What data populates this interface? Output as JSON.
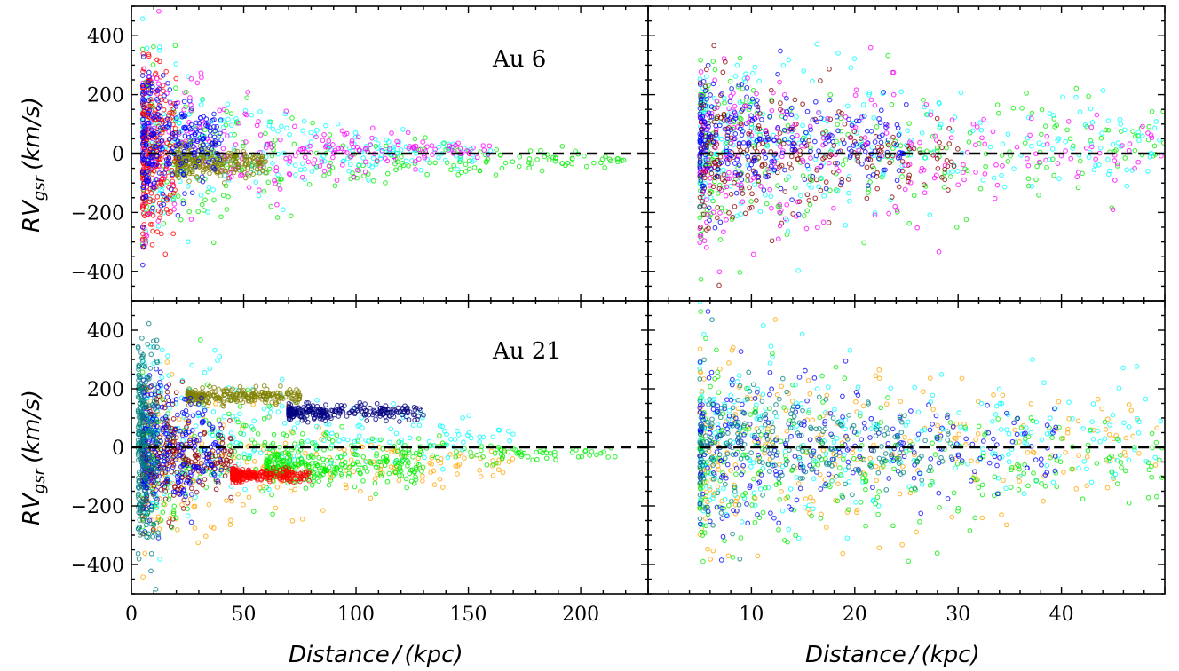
{
  "chart_data": {
    "type": "scatter",
    "layout": "2x2 panels",
    "grid": false,
    "legend": "none",
    "ylabel": "RV_gsr (km/s)",
    "ylabel_main": "RV",
    "ylabel_sub": "gsr",
    "ylabel_unit": "(km/s)",
    "xlabel_main": "Distance",
    "xlabel_sep": "/",
    "xlabel_unit": "(kpc)",
    "y_ticks": [
      "400",
      "200",
      "0",
      "−200",
      "−400"
    ],
    "y_tick_values": [
      400,
      200,
      0,
      -200,
      -400
    ],
    "ylim": [
      -500,
      500
    ],
    "left_xlim": [
      0,
      230
    ],
    "left_x_ticks": [
      "0",
      "50",
      "100",
      "150",
      "200"
    ],
    "left_x_tick_values": [
      0,
      50,
      100,
      150,
      200
    ],
    "right_xlim": [
      0,
      50
    ],
    "right_x_ticks": [
      "10",
      "20",
      "30",
      "40"
    ],
    "right_x_tick_values": [
      10,
      20,
      30,
      40
    ],
    "reference_line": {
      "y": 0,
      "style": "dashed",
      "color": "#000000"
    },
    "panels": [
      {
        "id": "au6-full",
        "title": "Au 6",
        "xlim": [
          0,
          230
        ],
        "series": [
          {
            "color": "#00ee00",
            "x_range": [
              5,
              220
            ],
            "spread_at_5": 420,
            "decay": 0.013,
            "center": -20
          },
          {
            "color": "#00ffff",
            "x_range": [
              5,
              160
            ],
            "spread_at_5": 400,
            "decay": 0.015,
            "center": 0
          },
          {
            "color": "#ff00ff",
            "x_range": [
              5,
              160
            ],
            "spread_at_5": 400,
            "decay": 0.016,
            "center": 10
          },
          {
            "color": "#808000",
            "x_range": [
              20,
              60
            ],
            "spread_at_5": 120,
            "decay": 0.02,
            "center": -30
          },
          {
            "color": "#ff0000",
            "x_range": [
              5,
              20
            ],
            "spread_at_5": 380,
            "decay": 0.02,
            "center": 0
          },
          {
            "color": "#0000ff",
            "x_range": [
              5,
              40
            ],
            "spread_at_5": 300,
            "decay": 0.025,
            "center": 40
          }
        ]
      },
      {
        "id": "au6-inner",
        "title": "",
        "xlim": [
          0,
          50
        ],
        "series": [
          {
            "color": "#00ee00",
            "x_range": [
              5,
              50
            ],
            "spread_at_5": 420,
            "decay": 0.02,
            "center": 0
          },
          {
            "color": "#00ffff",
            "x_range": [
              5,
              50
            ],
            "spread_at_5": 400,
            "decay": 0.02,
            "center": 20
          },
          {
            "color": "#ff00ff",
            "x_range": [
              5,
              50
            ],
            "spread_at_5": 380,
            "decay": 0.02,
            "center": 0
          },
          {
            "color": "#8b0000",
            "x_range": [
              5,
              30
            ],
            "spread_at_5": 330,
            "decay": 0.025,
            "center": 0
          },
          {
            "color": "#0000ff",
            "x_range": [
              5,
              25
            ],
            "spread_at_5": 260,
            "decay": 0.03,
            "center": 40
          }
        ]
      },
      {
        "id": "au21-full",
        "title": "Au 21",
        "xlim": [
          0,
          230
        ],
        "series": [
          {
            "color": "#ffa500",
            "x_range": [
              5,
              170
            ],
            "spread_at_5": 420,
            "decay": 0.012,
            "center": -60
          },
          {
            "color": "#00ffff",
            "x_range": [
              5,
              170
            ],
            "spread_at_5": 440,
            "decay": 0.012,
            "center": 40
          },
          {
            "color": "#00ee00",
            "x_range": [
              60,
              130
            ],
            "spread_at_5": 70,
            "decay": 0.0,
            "center": -70
          },
          {
            "color": "#00ee00",
            "x_range": [
              5,
              220
            ],
            "spread_at_5": 400,
            "decay": 0.014,
            "center": -20
          },
          {
            "color": "#8b0000",
            "x_range": [
              5,
              45
            ],
            "spread_at_5": 300,
            "decay": 0.02,
            "center": -40
          },
          {
            "color": "#000080",
            "x_range": [
              70,
              130
            ],
            "spread_at_5": 30,
            "decay": 0.0,
            "center": 120
          },
          {
            "color": "#808000",
            "x_range": [
              25,
              75
            ],
            "spread_at_5": 30,
            "decay": 0.0,
            "center": 175
          },
          {
            "color": "#ff0000",
            "x_range": [
              45,
              80
            ],
            "spread_at_5": 25,
            "decay": 0.0,
            "center": -95
          },
          {
            "color": "#0000ff",
            "x_range": [
              5,
              40
            ],
            "spread_at_5": 320,
            "decay": 0.02,
            "center": 0
          },
          {
            "color": "#008080",
            "x_range": [
              3,
              12
            ],
            "spread_at_5": 420,
            "decay": 0.01,
            "center": 0
          }
        ]
      },
      {
        "id": "au21-inner",
        "title": "",
        "xlim": [
          0,
          50
        ],
        "series": [
          {
            "color": "#ffa500",
            "x_range": [
              5,
              50
            ],
            "spread_at_5": 450,
            "decay": 0.02,
            "center": -20
          },
          {
            "color": "#00ffff",
            "x_range": [
              5,
              50
            ],
            "spread_at_5": 460,
            "decay": 0.018,
            "center": 40
          },
          {
            "color": "#00ee00",
            "x_range": [
              5,
              50
            ],
            "spread_at_5": 420,
            "decay": 0.02,
            "center": -60
          },
          {
            "color": "#0000ff",
            "x_range": [
              5,
              40
            ],
            "spread_at_5": 340,
            "decay": 0.022,
            "center": 0
          },
          {
            "color": "#008080",
            "x_range": [
              5,
              30
            ],
            "spread_at_5": 300,
            "decay": 0.03,
            "center": 0
          }
        ]
      }
    ]
  }
}
